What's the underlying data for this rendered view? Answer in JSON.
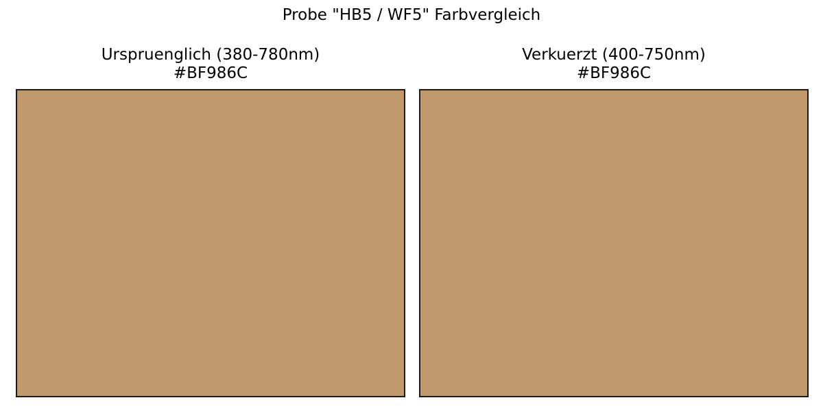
{
  "chart_data": {
    "type": "other",
    "title": "Probe \"HB5 / WF5\" Farbvergleich",
    "panels": [
      {
        "title": "Urspruenglich (380-780nm)",
        "hex": "#BF986C",
        "color": "#BF986C"
      },
      {
        "title": "Verkuerzt (400-750nm)",
        "hex": "#BF986C",
        "color": "#BF986C"
      }
    ]
  }
}
